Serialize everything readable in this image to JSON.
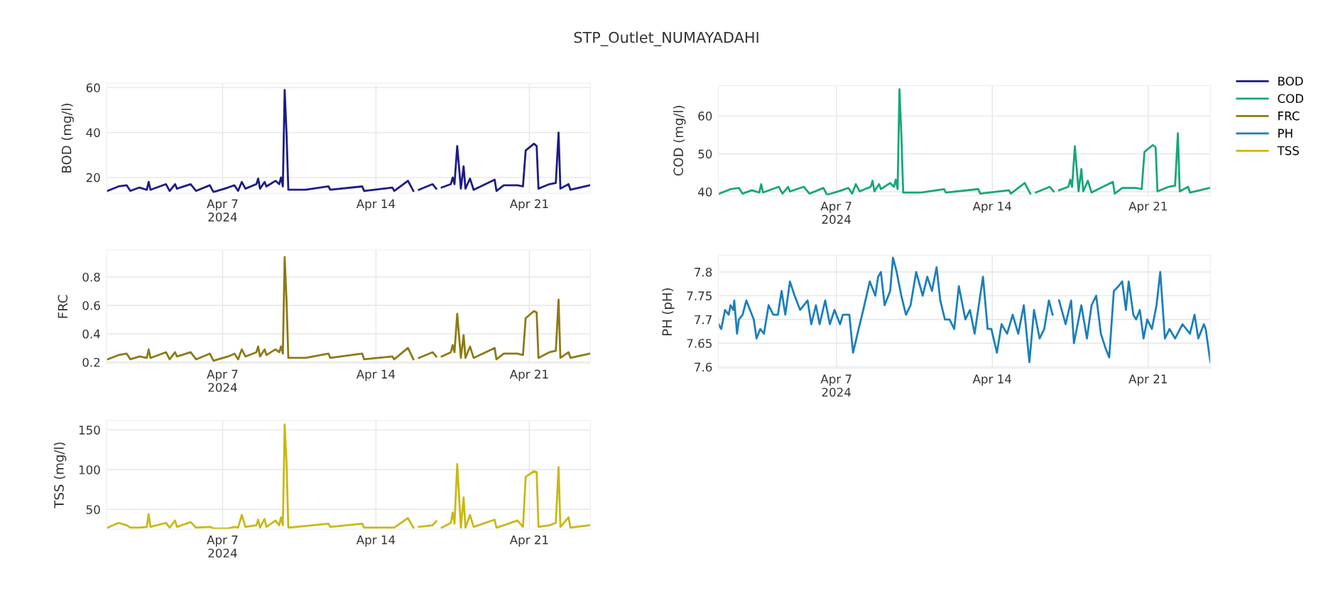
{
  "chart_data": [
    {
      "type": "line",
      "title": "STP_Outlet_NUMAYADAHI",
      "ylabel": "BOD (mg/l)",
      "xlim": [
        "2024-04-01T17:00",
        "2024-04-23T19:00"
      ],
      "ylim": [
        13,
        62
      ],
      "yticks": [
        20,
        40,
        60
      ],
      "xticks": [
        {
          "value": "2024-04-07",
          "label": "Apr 7\n2024"
        },
        {
          "value": "2024-04-14",
          "label": "Apr 14"
        },
        {
          "value": "2024-04-21",
          "label": "Apr 21"
        }
      ],
      "grid": true,
      "legend": "right",
      "x": [
        "2024-04-01T18:00",
        "2024-04-02T06:00",
        "2024-04-02T15:00",
        "2024-04-02T19:00",
        "2024-04-03T05:00",
        "2024-04-03T13:00",
        "2024-04-03T15:00",
        "2024-04-03T17:00",
        "2024-04-04T10:00",
        "2024-04-04T14:00",
        "2024-04-04T20:00",
        "2024-04-04T22:00",
        "2024-04-05T13:00",
        "2024-04-05T19:00",
        "2024-04-06T10:00",
        "2024-04-06T14:00",
        "2024-04-07T06:00",
        "2024-04-07T13:00",
        "2024-04-07T17:00",
        "2024-04-07T21:00",
        "2024-04-08T01:00",
        "2024-04-08T13:00",
        "2024-04-08T15:00",
        "2024-04-08T17:00",
        "2024-04-08T22:00",
        "2024-04-09T00:00",
        "2024-04-09T10:00",
        "2024-04-09T14:00",
        "2024-04-09T16:00",
        "2024-04-09T18:00",
        "2024-04-09T20:00",
        "2024-04-09T22:00",
        "2024-04-10T00:00",
        "2024-04-10T19:00",
        "2024-04-11T20:00",
        "2024-04-11T22:00",
        "2024-04-13T09:00",
        "2024-04-13T11:00",
        "2024-04-14T18:00",
        "2024-04-14T20:00",
        "2024-04-15T11:00",
        "2024-04-15T17:00",
        "2024-04-15T20:00",
        "2024-04-15T23:00",
        "2024-04-16T14:00",
        "2024-04-16T18:00",
        "2024-04-16T21:00",
        "2024-04-17T00:00",
        "2024-04-17T10:00",
        "2024-04-17T12:00",
        "2024-04-17T14:00",
        "2024-04-17T17:00",
        "2024-04-17T21:00",
        "2024-04-18T00:00",
        "2024-04-18T02:00",
        "2024-04-18T07:00",
        "2024-04-18T11:00",
        "2024-04-19T10:00",
        "2024-04-19T12:00",
        "2024-04-19T20:00",
        "2024-04-20T11:00",
        "2024-04-20T17:00",
        "2024-04-20T20:00",
        "2024-04-21T05:00",
        "2024-04-21T08:00",
        "2024-04-21T10:00",
        "2024-04-21T22:00",
        "2024-04-22T05:00",
        "2024-04-22T08:00",
        "2024-04-22T10:00",
        "2024-04-22T19:00",
        "2024-04-22T21:00",
        "2024-04-23T18:00"
      ],
      "series": [
        {
          "name": "BOD",
          "color": "#1c1c85",
          "values": [
            14,
            16,
            16.5,
            14,
            15.5,
            14.5,
            18,
            14.5,
            17,
            14,
            17,
            15,
            17,
            14,
            16.5,
            13.5,
            15.5,
            16.5,
            14,
            18,
            15,
            17,
            19.5,
            15,
            18,
            16,
            18.5,
            17,
            20,
            16,
            59,
            40,
            14.5,
            14.5,
            16,
            14.5,
            16,
            14,
            15.5,
            14,
            18.5,
            14,
            null,
            14.5,
            17,
            15,
            null,
            15.5,
            17,
            20,
            17,
            34,
            15,
            25,
            15,
            19.5,
            14.5,
            19,
            14,
            16.5,
            16.5,
            16,
            32,
            35,
            34,
            15,
            17,
            17.5,
            40,
            15,
            17,
            14.5,
            16.5
          ]
        }
      ]
    },
    {
      "type": "line",
      "ylabel": "COD (mg/l)",
      "xlim": [
        "2024-04-01T17:00",
        "2024-04-23T19:00"
      ],
      "ylim": [
        39,
        68
      ],
      "yticks": [
        40,
        50,
        60
      ],
      "xticks": [
        {
          "value": "2024-04-07",
          "label": "Apr 7\n2024"
        },
        {
          "value": "2024-04-14",
          "label": "Apr 14"
        },
        {
          "value": "2024-04-21",
          "label": "Apr 21"
        }
      ],
      "grid": true,
      "legend": "right",
      "x": [
        "2024-04-01T18:00",
        "2024-04-02T06:00",
        "2024-04-02T15:00",
        "2024-04-02T19:00",
        "2024-04-03T05:00",
        "2024-04-03T13:00",
        "2024-04-03T15:00",
        "2024-04-03T17:00",
        "2024-04-04T10:00",
        "2024-04-04T14:00",
        "2024-04-04T20:00",
        "2024-04-04T22:00",
        "2024-04-05T13:00",
        "2024-04-05T19:00",
        "2024-04-06T10:00",
        "2024-04-06T14:00",
        "2024-04-07T06:00",
        "2024-04-07T13:00",
        "2024-04-07T17:00",
        "2024-04-07T21:00",
        "2024-04-08T01:00",
        "2024-04-08T13:00",
        "2024-04-08T15:00",
        "2024-04-08T17:00",
        "2024-04-08T22:00",
        "2024-04-09T00:00",
        "2024-04-09T10:00",
        "2024-04-09T14:00",
        "2024-04-09T16:00",
        "2024-04-09T18:00",
        "2024-04-09T20:00",
        "2024-04-09T22:00",
        "2024-04-10T00:00",
        "2024-04-10T19:00",
        "2024-04-11T20:00",
        "2024-04-11T22:00",
        "2024-04-13T09:00",
        "2024-04-13T11:00",
        "2024-04-14T18:00",
        "2024-04-14T20:00",
        "2024-04-15T11:00",
        "2024-04-15T17:00",
        "2024-04-15T20:00",
        "2024-04-15T23:00",
        "2024-04-16T14:00",
        "2024-04-16T18:00",
        "2024-04-16T21:00",
        "2024-04-17T00:00",
        "2024-04-17T10:00",
        "2024-04-17T12:00",
        "2024-04-17T14:00",
        "2024-04-17T17:00",
        "2024-04-17T21:00",
        "2024-04-18T00:00",
        "2024-04-18T02:00",
        "2024-04-18T07:00",
        "2024-04-18T11:00",
        "2024-04-19T10:00",
        "2024-04-19T12:00",
        "2024-04-19T20:00",
        "2024-04-20T11:00",
        "2024-04-20T17:00",
        "2024-04-20T20:00",
        "2024-04-21T05:00",
        "2024-04-21T08:00",
        "2024-04-21T10:00",
        "2024-04-21T22:00",
        "2024-04-22T05:00",
        "2024-04-22T08:00",
        "2024-04-22T10:00",
        "2024-04-22T19:00",
        "2024-04-22T21:00",
        "2024-04-23T18:00"
      ],
      "series": [
        {
          "name": "COD",
          "color": "#17a67b",
          "values": [
            39.5,
            40.7,
            41,
            39.5,
            40.4,
            39.8,
            42,
            39.8,
            41.3,
            39.5,
            41.3,
            40.1,
            41.3,
            39.5,
            41,
            39.2,
            40.4,
            41,
            39.5,
            42,
            40.1,
            41.3,
            42.9,
            40.1,
            42,
            40.7,
            42.3,
            41.3,
            43.2,
            40.7,
            67,
            55.4,
            39.8,
            39.8,
            40.7,
            39.8,
            40.7,
            39.5,
            40.4,
            39.5,
            42.3,
            39.5,
            null,
            39.8,
            41.3,
            40.1,
            null,
            40.4,
            41.3,
            43.2,
            41.3,
            52,
            40.1,
            46,
            40.1,
            42.9,
            39.8,
            42.6,
            39.5,
            41,
            41,
            40.7,
            50.5,
            52.3,
            51.7,
            40.1,
            41.3,
            41.6,
            55.4,
            40.1,
            41.3,
            39.8,
            41
          ]
        }
      ]
    },
    {
      "type": "line",
      "ylabel": "FRC",
      "xlim": [
        "2024-04-01T17:00",
        "2024-04-23T19:00"
      ],
      "ylim": [
        0.19,
        0.99
      ],
      "yticks": [
        0.2,
        0.4,
        0.6,
        0.8
      ],
      "xticks": [
        {
          "value": "2024-04-07",
          "label": "Apr 7\n2024"
        },
        {
          "value": "2024-04-14",
          "label": "Apr 14"
        },
        {
          "value": "2024-04-21",
          "label": "Apr 21"
        }
      ],
      "grid": true,
      "legend": "right",
      "x": [
        "2024-04-01T18:00",
        "2024-04-02T06:00",
        "2024-04-02T15:00",
        "2024-04-02T19:00",
        "2024-04-03T05:00",
        "2024-04-03T13:00",
        "2024-04-03T15:00",
        "2024-04-03T17:00",
        "2024-04-04T10:00",
        "2024-04-04T14:00",
        "2024-04-04T20:00",
        "2024-04-04T22:00",
        "2024-04-05T13:00",
        "2024-04-05T19:00",
        "2024-04-06T10:00",
        "2024-04-06T14:00",
        "2024-04-07T06:00",
        "2024-04-07T13:00",
        "2024-04-07T17:00",
        "2024-04-07T21:00",
        "2024-04-08T01:00",
        "2024-04-08T13:00",
        "2024-04-08T15:00",
        "2024-04-08T17:00",
        "2024-04-08T22:00",
        "2024-04-09T00:00",
        "2024-04-09T10:00",
        "2024-04-09T14:00",
        "2024-04-09T16:00",
        "2024-04-09T18:00",
        "2024-04-09T20:00",
        "2024-04-09T22:00",
        "2024-04-10T00:00",
        "2024-04-10T19:00",
        "2024-04-11T20:00",
        "2024-04-11T22:00",
        "2024-04-13T09:00",
        "2024-04-13T11:00",
        "2024-04-14T18:00",
        "2024-04-14T20:00",
        "2024-04-15T11:00",
        "2024-04-15T17:00",
        "2024-04-15T20:00",
        "2024-04-15T23:00",
        "2024-04-16T14:00",
        "2024-04-16T18:00",
        "2024-04-16T21:00",
        "2024-04-17T00:00",
        "2024-04-17T10:00",
        "2024-04-17T12:00",
        "2024-04-17T14:00",
        "2024-04-17T17:00",
        "2024-04-17T21:00",
        "2024-04-18T00:00",
        "2024-04-18T02:00",
        "2024-04-18T07:00",
        "2024-04-18T11:00",
        "2024-04-19T10:00",
        "2024-04-19T12:00",
        "2024-04-19T20:00",
        "2024-04-20T11:00",
        "2024-04-20T17:00",
        "2024-04-20T20:00",
        "2024-04-21T05:00",
        "2024-04-21T08:00",
        "2024-04-21T10:00",
        "2024-04-21T22:00",
        "2024-04-22T05:00",
        "2024-04-22T08:00",
        "2024-04-22T10:00",
        "2024-04-22T19:00",
        "2024-04-22T21:00",
        "2024-04-23T18:00"
      ],
      "series": [
        {
          "name": "FRC",
          "color": "#8c7a14",
          "values": [
            0.22,
            0.25,
            0.26,
            0.22,
            0.24,
            0.23,
            0.29,
            0.23,
            0.27,
            0.22,
            0.27,
            0.24,
            0.27,
            0.22,
            0.26,
            0.21,
            0.24,
            0.26,
            0.22,
            0.29,
            0.24,
            0.27,
            0.31,
            0.24,
            0.29,
            0.25,
            0.29,
            0.27,
            0.31,
            0.26,
            0.94,
            0.64,
            0.23,
            0.23,
            0.26,
            0.23,
            0.26,
            0.22,
            0.24,
            0.22,
            0.3,
            0.22,
            null,
            0.23,
            0.27,
            0.24,
            null,
            0.24,
            0.27,
            0.32,
            0.27,
            0.54,
            0.23,
            0.39,
            0.23,
            0.31,
            0.23,
            0.3,
            0.22,
            0.26,
            0.26,
            0.25,
            0.51,
            0.56,
            0.55,
            0.23,
            0.27,
            0.28,
            0.64,
            0.23,
            0.27,
            0.23,
            0.26
          ]
        }
      ]
    },
    {
      "type": "line",
      "ylabel": "PH (pH)",
      "xlim": [
        "2024-04-01T17:00",
        "2024-04-23T19:00"
      ],
      "ylim": [
        7.597,
        7.835
      ],
      "yticks": [
        7.6,
        7.65,
        7.7,
        7.75,
        7.8
      ],
      "xticks": [
        {
          "value": "2024-04-07",
          "label": "Apr 7\n2024"
        },
        {
          "value": "2024-04-14",
          "label": "Apr 14"
        },
        {
          "value": "2024-04-21",
          "label": "Apr 21"
        }
      ],
      "grid": true,
      "legend": "right",
      "x": [
        "2024-04-01T17:00",
        "2024-04-01T20:00",
        "2024-04-02T00:00",
        "2024-04-02T04:00",
        "2024-04-02T06:00",
        "2024-04-02T09:00",
        "2024-04-02T10:00",
        "2024-04-02T13:00",
        "2024-04-02T15:00",
        "2024-04-02T19:00",
        "2024-04-02T23:00",
        "2024-04-03T03:00",
        "2024-04-03T07:00",
        "2024-04-03T10:00",
        "2024-04-03T14:00",
        "2024-04-03T18:00",
        "2024-04-03T23:00",
        "2024-04-04T04:00",
        "2024-04-04T09:00",
        "2024-04-04T13:00",
        "2024-04-04T17:00",
        "2024-04-04T22:00",
        "2024-04-05T03:00",
        "2024-04-05T09:00",
        "2024-04-05T17:00",
        "2024-04-05T21:00",
        "2024-04-06T02:00",
        "2024-04-06T06:00",
        "2024-04-06T12:00",
        "2024-04-06T17:00",
        "2024-04-06T22:00",
        "2024-04-07T04:00",
        "2024-04-07T07:00",
        "2024-04-07T14:00",
        "2024-04-07T18:00",
        "2024-04-08T00:00",
        "2024-04-08T05:00",
        "2024-04-08T12:00",
        "2024-04-08T18:00",
        "2024-04-08T21:00",
        "2024-04-09T00:00",
        "2024-04-09T04:00",
        "2024-04-09T10:00",
        "2024-04-09T13:00",
        "2024-04-09T17:00",
        "2024-04-09T22:00",
        "2024-04-10T03:00",
        "2024-04-10T08:00",
        "2024-04-10T14:00",
        "2024-04-10T21:00",
        "2024-04-11T02:00",
        "2024-04-11T07:00",
        "2024-04-11T12:00",
        "2024-04-11T16:00",
        "2024-04-11T21:00",
        "2024-04-12T02:00",
        "2024-04-12T07:00",
        "2024-04-12T12:00",
        "2024-04-12T19:00",
        "2024-04-13T00:00",
        "2024-04-13T05:00",
        "2024-04-13T14:00",
        "2024-04-13T19:00",
        "2024-04-13T23:00",
        "2024-04-14T05:00",
        "2024-04-14T10:00",
        "2024-04-14T16:00",
        "2024-04-14T22:00",
        "2024-04-15T04:00",
        "2024-04-15T10:00",
        "2024-04-15T16:00",
        "2024-04-15T21:00",
        "2024-04-16T03:00",
        "2024-04-16T08:00",
        "2024-04-16T13:00",
        "2024-04-16T17:00",
        "2024-04-16T20:00",
        "2024-04-17T00:00",
        "2024-04-17T07:00",
        "2024-04-17T13:00",
        "2024-04-17T16:00",
        "2024-04-17T21:00",
        "2024-04-18T00:00",
        "2024-04-18T06:00",
        "2024-04-18T11:00",
        "2024-04-18T16:00",
        "2024-04-18T21:00",
        "2024-04-19T02:00",
        "2024-04-19T06:00",
        "2024-04-19T11:00",
        "2024-04-19T16:00",
        "2024-04-19T20:00",
        "2024-04-20T00:00",
        "2024-04-20T03:00",
        "2024-04-20T08:00",
        "2024-04-20T11:00",
        "2024-04-20T15:00",
        "2024-04-20T19:00",
        "2024-04-20T23:00",
        "2024-04-21T04:00",
        "2024-04-21T09:00",
        "2024-04-21T13:00",
        "2024-04-21T18:00",
        "2024-04-21T23:00",
        "2024-04-22T05:00",
        "2024-04-22T13:00",
        "2024-04-22T21:00",
        "2024-04-23T02:00",
        "2024-04-23T06:00",
        "2024-04-23T12:00",
        "2024-04-23T14:00",
        "2024-04-23T19:00"
      ],
      "series": [
        {
          "name": "PH",
          "color": "#1c7fba",
          "values": [
            7.69,
            7.68,
            7.72,
            7.71,
            7.73,
            7.72,
            7.74,
            7.67,
            7.7,
            7.71,
            7.74,
            7.72,
            7.7,
            7.66,
            7.68,
            7.67,
            7.73,
            7.71,
            7.71,
            7.76,
            7.71,
            7.78,
            7.75,
            7.72,
            7.74,
            7.69,
            7.73,
            7.69,
            7.74,
            7.69,
            7.72,
            7.69,
            7.71,
            7.71,
            7.63,
            7.68,
            7.72,
            7.78,
            7.75,
            7.79,
            7.8,
            7.73,
            7.76,
            7.83,
            7.8,
            7.75,
            7.71,
            7.73,
            7.8,
            7.75,
            7.79,
            7.76,
            7.81,
            7.74,
            7.7,
            7.7,
            7.68,
            7.77,
            7.7,
            7.72,
            7.67,
            7.79,
            7.68,
            7.68,
            7.63,
            7.69,
            7.67,
            7.71,
            7.67,
            7.73,
            7.61,
            7.72,
            7.66,
            7.68,
            7.74,
            7.71,
            null,
            7.74,
            7.69,
            7.74,
            7.65,
            7.7,
            7.73,
            7.66,
            7.73,
            7.75,
            7.67,
            7.64,
            7.62,
            7.76,
            7.77,
            7.78,
            7.72,
            7.78,
            7.71,
            7.7,
            7.72,
            7.66,
            7.7,
            7.68,
            7.73,
            7.8,
            7.66,
            7.68,
            7.66,
            7.69,
            7.67,
            7.71,
            7.66,
            7.69,
            7.68,
            7.61
          ]
        }
      ]
    },
    {
      "type": "line",
      "ylabel": "TSS (mg/l)",
      "xlim": [
        "2024-04-01T17:00",
        "2024-04-23T19:00"
      ],
      "ylim": [
        25,
        162
      ],
      "yticks": [
        50,
        100,
        150
      ],
      "xticks": [
        {
          "value": "2024-04-07",
          "label": "Apr 7\n2024"
        },
        {
          "value": "2024-04-14",
          "label": "Apr 14"
        },
        {
          "value": "2024-04-21",
          "label": "Apr 21"
        }
      ],
      "grid": true,
      "legend": "right",
      "x": [
        "2024-04-01T18:00",
        "2024-04-02T06:00",
        "2024-04-02T15:00",
        "2024-04-02T19:00",
        "2024-04-03T05:00",
        "2024-04-03T13:00",
        "2024-04-03T15:00",
        "2024-04-03T17:00",
        "2024-04-04T10:00",
        "2024-04-04T14:00",
        "2024-04-04T20:00",
        "2024-04-04T22:00",
        "2024-04-05T13:00",
        "2024-04-05T19:00",
        "2024-04-06T10:00",
        "2024-04-06T14:00",
        "2024-04-07T06:00",
        "2024-04-07T13:00",
        "2024-04-07T17:00",
        "2024-04-07T21:00",
        "2024-04-08T01:00",
        "2024-04-08T13:00",
        "2024-04-08T15:00",
        "2024-04-08T17:00",
        "2024-04-08T22:00",
        "2024-04-09T00:00",
        "2024-04-09T10:00",
        "2024-04-09T14:00",
        "2024-04-09T16:00",
        "2024-04-09T18:00",
        "2024-04-09T20:00",
        "2024-04-09T22:00",
        "2024-04-10T00:00",
        "2024-04-10T19:00",
        "2024-04-11T20:00",
        "2024-04-11T22:00",
        "2024-04-13T09:00",
        "2024-04-13T11:00",
        "2024-04-14T18:00",
        "2024-04-14T20:00",
        "2024-04-15T11:00",
        "2024-04-15T17:00",
        "2024-04-15T20:00",
        "2024-04-15T23:00",
        "2024-04-16T14:00",
        "2024-04-16T18:00",
        "2024-04-16T21:00",
        "2024-04-17T00:00",
        "2024-04-17T10:00",
        "2024-04-17T12:00",
        "2024-04-17T14:00",
        "2024-04-17T17:00",
        "2024-04-17T21:00",
        "2024-04-18T00:00",
        "2024-04-18T02:00",
        "2024-04-18T07:00",
        "2024-04-18T11:00",
        "2024-04-19T10:00",
        "2024-04-19T12:00",
        "2024-04-19T20:00",
        "2024-04-20T11:00",
        "2024-04-20T17:00",
        "2024-04-20T20:00",
        "2024-04-21T05:00",
        "2024-04-21T08:00",
        "2024-04-21T10:00",
        "2024-04-21T22:00",
        "2024-04-22T05:00",
        "2024-04-22T08:00",
        "2024-04-22T10:00",
        "2024-04-22T19:00",
        "2024-04-22T21:00",
        "2024-04-23T18:00"
      ],
      "series": [
        {
          "name": "TSS",
          "color": "#c9b814",
          "values": [
            27,
            33,
            30,
            27,
            27,
            28,
            44,
            28,
            33,
            27,
            36,
            28,
            34,
            27,
            28,
            26,
            26,
            28,
            27,
            43,
            28,
            30,
            37,
            27,
            38,
            28,
            36,
            30,
            40,
            30,
            157,
            110,
            27,
            29,
            32,
            28,
            32,
            27,
            27,
            27,
            39,
            27,
            null,
            28,
            30,
            35,
            null,
            27,
            33,
            46,
            32,
            107,
            27,
            65,
            27,
            43,
            28,
            37,
            27,
            30,
            36,
            28,
            91,
            98,
            97,
            28,
            30,
            33,
            103,
            28,
            40,
            27,
            30
          ]
        }
      ]
    }
  ]
}
